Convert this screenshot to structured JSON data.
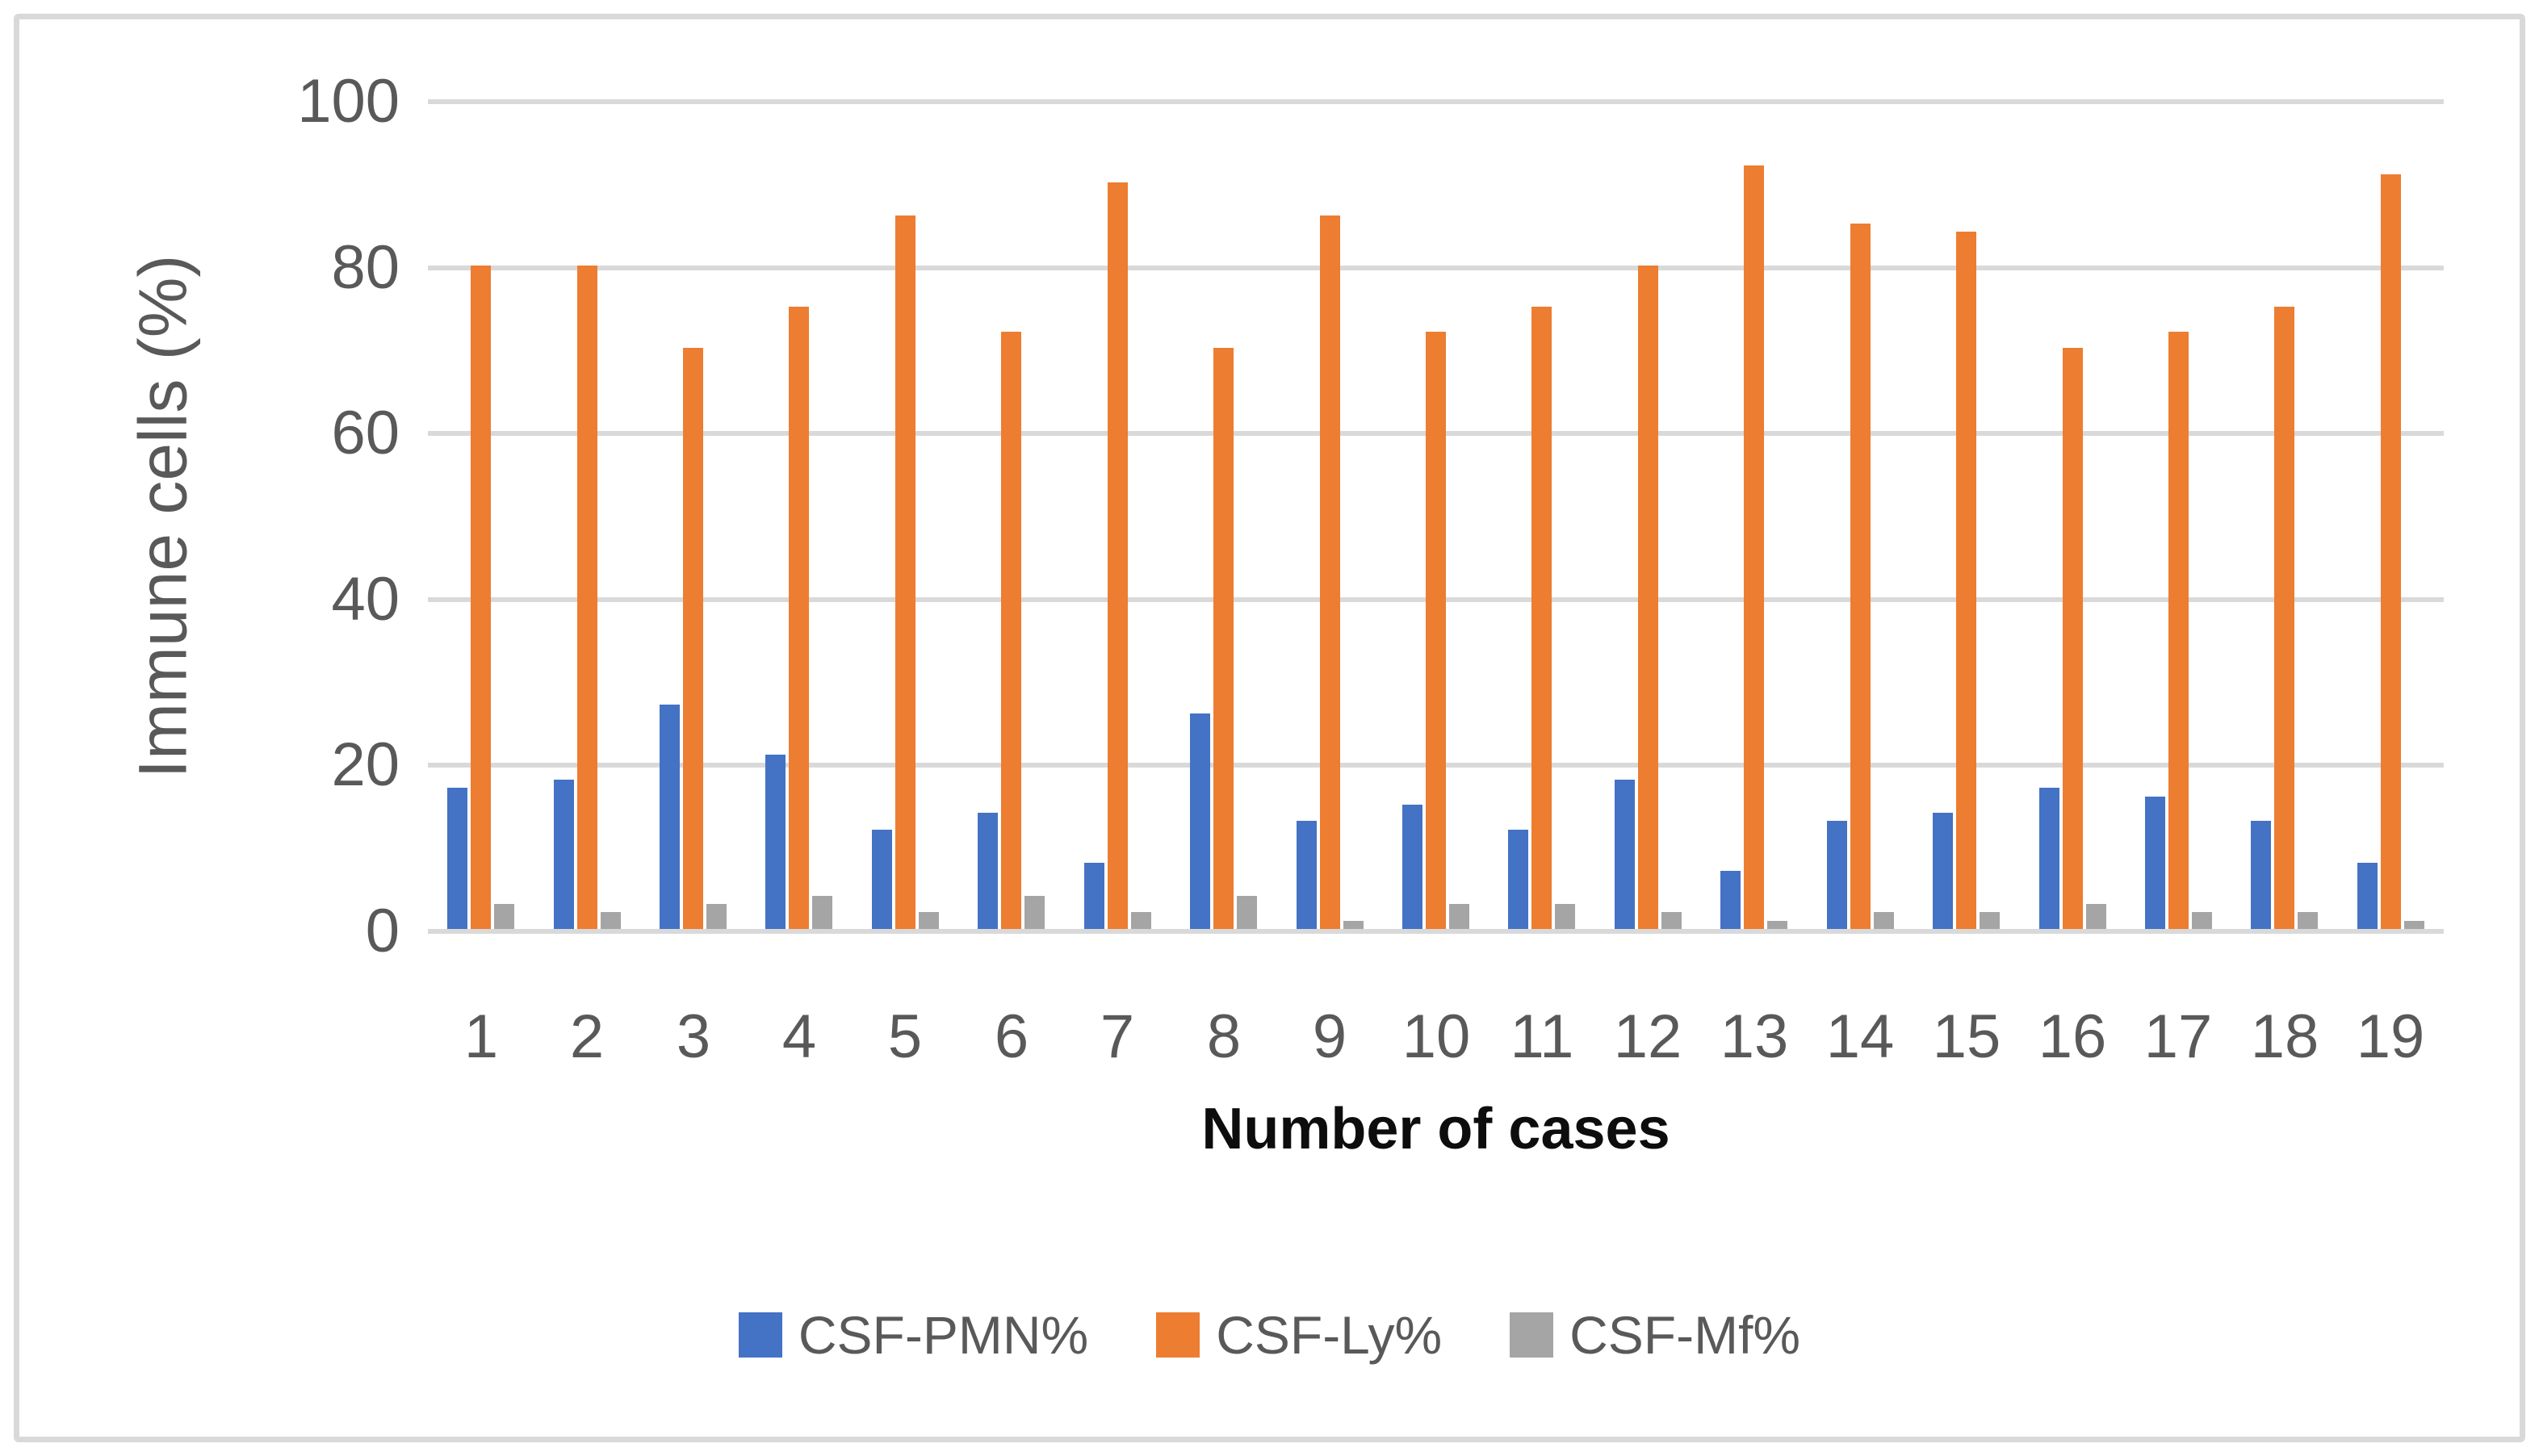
{
  "figure": {
    "background_color": "#ffffff",
    "frame_color": "#d9d9d9",
    "gridline_color": "#d9d9d9",
    "tick_label_color": "#595959",
    "axis_title_color": "#0d0d0d"
  },
  "y_axis": {
    "title": "Immune cells (%)",
    "tick_labels": [
      "0",
      "20",
      "40",
      "60",
      "80",
      "100"
    ]
  },
  "x_axis": {
    "title": "Number of cases"
  },
  "legend": {
    "items": [
      {
        "label": "CSF-PMN%",
        "color": "#4472c4"
      },
      {
        "label": "CSF-Ly%",
        "color": "#ed7d31"
      },
      {
        "label": "CSF-Mf%",
        "color": "#a5a5a5"
      }
    ]
  },
  "chart_data": {
    "type": "bar",
    "title": "",
    "xlabel": "Number of cases",
    "ylabel": "Immune cells (%)",
    "ylim": [
      0,
      100
    ],
    "yticks": [
      0,
      20,
      40,
      60,
      80,
      100
    ],
    "grid": true,
    "legend_position": "bottom",
    "categories": [
      "1",
      "2",
      "3",
      "4",
      "5",
      "6",
      "7",
      "8",
      "9",
      "10",
      "11",
      "12",
      "13",
      "14",
      "15",
      "16",
      "17",
      "18",
      "19"
    ],
    "series": [
      {
        "name": "CSF-PMN%",
        "color": "#4472c4",
        "values": [
          17,
          18,
          27,
          21,
          12,
          14,
          8,
          26,
          13,
          15,
          12,
          18,
          7,
          13,
          14,
          17,
          16,
          13,
          8
        ]
      },
      {
        "name": "CSF-Ly%",
        "color": "#ed7d31",
        "values": [
          80,
          80,
          70,
          75,
          86,
          72,
          90,
          70,
          86,
          72,
          75,
          80,
          92,
          85,
          84,
          70,
          72,
          75,
          91
        ]
      },
      {
        "name": "CSF-Mf%",
        "color": "#a5a5a5",
        "values": [
          3,
          2,
          3,
          4,
          2,
          4,
          2,
          4,
          1,
          3,
          3,
          2,
          1,
          2,
          2,
          3,
          2,
          2,
          1
        ]
      }
    ]
  }
}
